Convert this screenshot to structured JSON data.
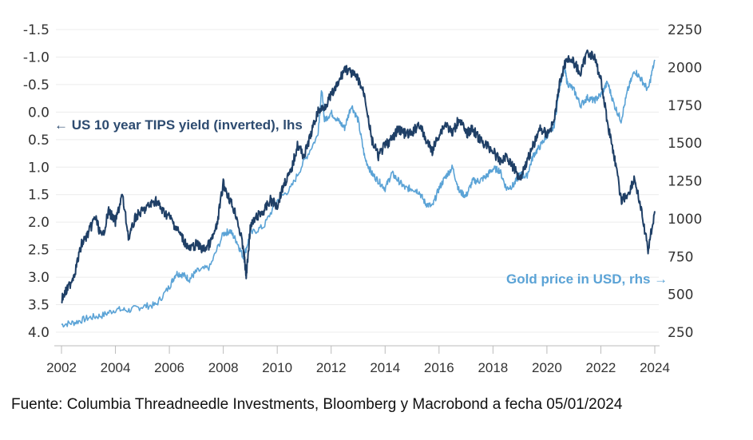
{
  "chart_data": {
    "type": "line",
    "title": "",
    "xlabel": "",
    "x_ticks": [
      "2002",
      "2004",
      "2006",
      "2008",
      "2010",
      "2012",
      "2014",
      "2016",
      "2018",
      "2020",
      "2022",
      "2024"
    ],
    "xlim": [
      2002,
      2024
    ],
    "y_left": {
      "label": "US 10 year TIPS yield (inverted), lhs",
      "ticks": [
        "-1.5",
        "-1.0",
        "-0.5",
        "0.0",
        "0.5",
        "1.0",
        "1.5",
        "2.0",
        "2.5",
        "3.0",
        "3.5",
        "4.0"
      ],
      "range": [
        -1.5,
        4.0
      ],
      "inverted": true
    },
    "y_right": {
      "label": "Gold price in USD, rhs",
      "ticks": [
        "2250",
        "2000",
        "1750",
        "1500",
        "1250",
        "1000",
        "750",
        "500",
        "250"
      ],
      "range": [
        250,
        2250
      ]
    },
    "grid": true,
    "series": [
      {
        "name": "US 10 year TIPS yield (inverted), lhs",
        "axis": "left",
        "color": "#1f3f66",
        "x": [
          2002.0,
          2002.25,
          2002.5,
          2002.75,
          2003.0,
          2003.25,
          2003.5,
          2003.75,
          2004.0,
          2004.25,
          2004.5,
          2004.75,
          2005.0,
          2005.25,
          2005.5,
          2005.75,
          2006.0,
          2006.25,
          2006.5,
          2006.75,
          2007.0,
          2007.25,
          2007.5,
          2007.75,
          2008.0,
          2008.25,
          2008.5,
          2008.75,
          2008.85,
          2009.0,
          2009.25,
          2009.5,
          2009.75,
          2010.0,
          2010.25,
          2010.5,
          2010.75,
          2011.0,
          2011.25,
          2011.5,
          2011.75,
          2012.0,
          2012.25,
          2012.5,
          2012.75,
          2013.0,
          2013.25,
          2013.5,
          2013.75,
          2014.0,
          2014.25,
          2014.5,
          2014.75,
          2015.0,
          2015.25,
          2015.5,
          2015.75,
          2016.0,
          2016.25,
          2016.5,
          2016.75,
          2017.0,
          2017.25,
          2017.5,
          2017.75,
          2018.0,
          2018.25,
          2018.5,
          2018.75,
          2019.0,
          2019.25,
          2019.5,
          2019.75,
          2020.0,
          2020.25,
          2020.5,
          2020.75,
          2021.0,
          2021.25,
          2021.5,
          2021.75,
          2022.0,
          2022.25,
          2022.5,
          2022.75,
          2023.0,
          2023.25,
          2023.5,
          2023.75,
          2024.0
        ],
        "values": [
          3.4,
          3.2,
          2.9,
          2.4,
          2.2,
          1.9,
          2.3,
          1.8,
          2.0,
          1.5,
          2.3,
          1.9,
          1.8,
          1.7,
          1.6,
          1.8,
          1.9,
          2.1,
          2.3,
          2.5,
          2.4,
          2.5,
          2.4,
          2.1,
          1.3,
          1.6,
          1.9,
          2.5,
          3.0,
          2.1,
          1.9,
          1.8,
          1.6,
          1.7,
          1.3,
          1.1,
          0.6,
          0.8,
          0.4,
          0.0,
          -0.1,
          -0.3,
          -0.5,
          -0.8,
          -0.7,
          -0.6,
          -0.3,
          0.5,
          0.8,
          0.6,
          0.5,
          0.3,
          0.4,
          0.4,
          0.2,
          0.5,
          0.7,
          0.4,
          0.2,
          0.4,
          0.1,
          0.4,
          0.3,
          0.5,
          0.6,
          0.7,
          0.9,
          0.8,
          1.0,
          1.2,
          0.9,
          0.6,
          0.3,
          0.4,
          0.2,
          -0.6,
          -1.0,
          -0.9,
          -0.7,
          -1.1,
          -1.0,
          -0.6,
          0.2,
          0.8,
          1.6,
          1.5,
          1.2,
          1.8,
          2.5,
          1.8
        ]
      },
      {
        "name": "Gold price in USD, rhs",
        "axis": "right",
        "color": "#5ba3d6",
        "x": [
          2002.0,
          2002.5,
          2003.0,
          2003.5,
          2004.0,
          2004.5,
          2005.0,
          2005.5,
          2006.0,
          2006.25,
          2006.5,
          2006.75,
          2007.0,
          2007.5,
          2008.0,
          2008.25,
          2008.5,
          2008.75,
          2009.0,
          2009.5,
          2010.0,
          2010.5,
          2011.0,
          2011.5,
          2011.65,
          2011.75,
          2012.0,
          2012.25,
          2012.5,
          2012.75,
          2013.0,
          2013.25,
          2013.5,
          2013.75,
          2014.0,
          2014.25,
          2014.5,
          2014.75,
          2015.0,
          2015.25,
          2015.5,
          2015.75,
          2016.0,
          2016.25,
          2016.5,
          2016.75,
          2017.0,
          2017.25,
          2017.5,
          2017.75,
          2018.0,
          2018.25,
          2018.5,
          2018.75,
          2019.0,
          2019.25,
          2019.5,
          2019.75,
          2020.0,
          2020.25,
          2020.5,
          2020.65,
          2020.75,
          2021.0,
          2021.25,
          2021.5,
          2021.75,
          2022.0,
          2022.25,
          2022.5,
          2022.75,
          2023.0,
          2023.25,
          2023.5,
          2023.75,
          2024.0
        ],
        "values": [
          300,
          315,
          345,
          360,
          400,
          395,
          420,
          430,
          550,
          640,
          630,
          600,
          650,
          680,
          900,
          920,
          850,
          740,
          900,
          950,
          1120,
          1200,
          1380,
          1550,
          1850,
          1650,
          1700,
          1650,
          1600,
          1750,
          1650,
          1400,
          1300,
          1250,
          1200,
          1300,
          1250,
          1200,
          1200,
          1180,
          1100,
          1080,
          1200,
          1280,
          1340,
          1180,
          1150,
          1250,
          1250,
          1280,
          1330,
          1320,
          1200,
          1220,
          1290,
          1280,
          1420,
          1480,
          1550,
          1600,
          1900,
          2000,
          1900,
          1850,
          1750,
          1800,
          1780,
          1820,
          1900,
          1750,
          1650,
          1850,
          1980,
          1920,
          1850,
          2050
        ]
      }
    ],
    "annotations": [
      {
        "text": "← US 10 year TIPS yield (inverted), lhs",
        "series": "tips"
      },
      {
        "text": "Gold price in USD, rhs →",
        "series": "gold"
      }
    ]
  },
  "source_note": "Fuente: Columbia Threadneedle Investments, Bloomberg y Macrobond a fecha 05/01/2024"
}
